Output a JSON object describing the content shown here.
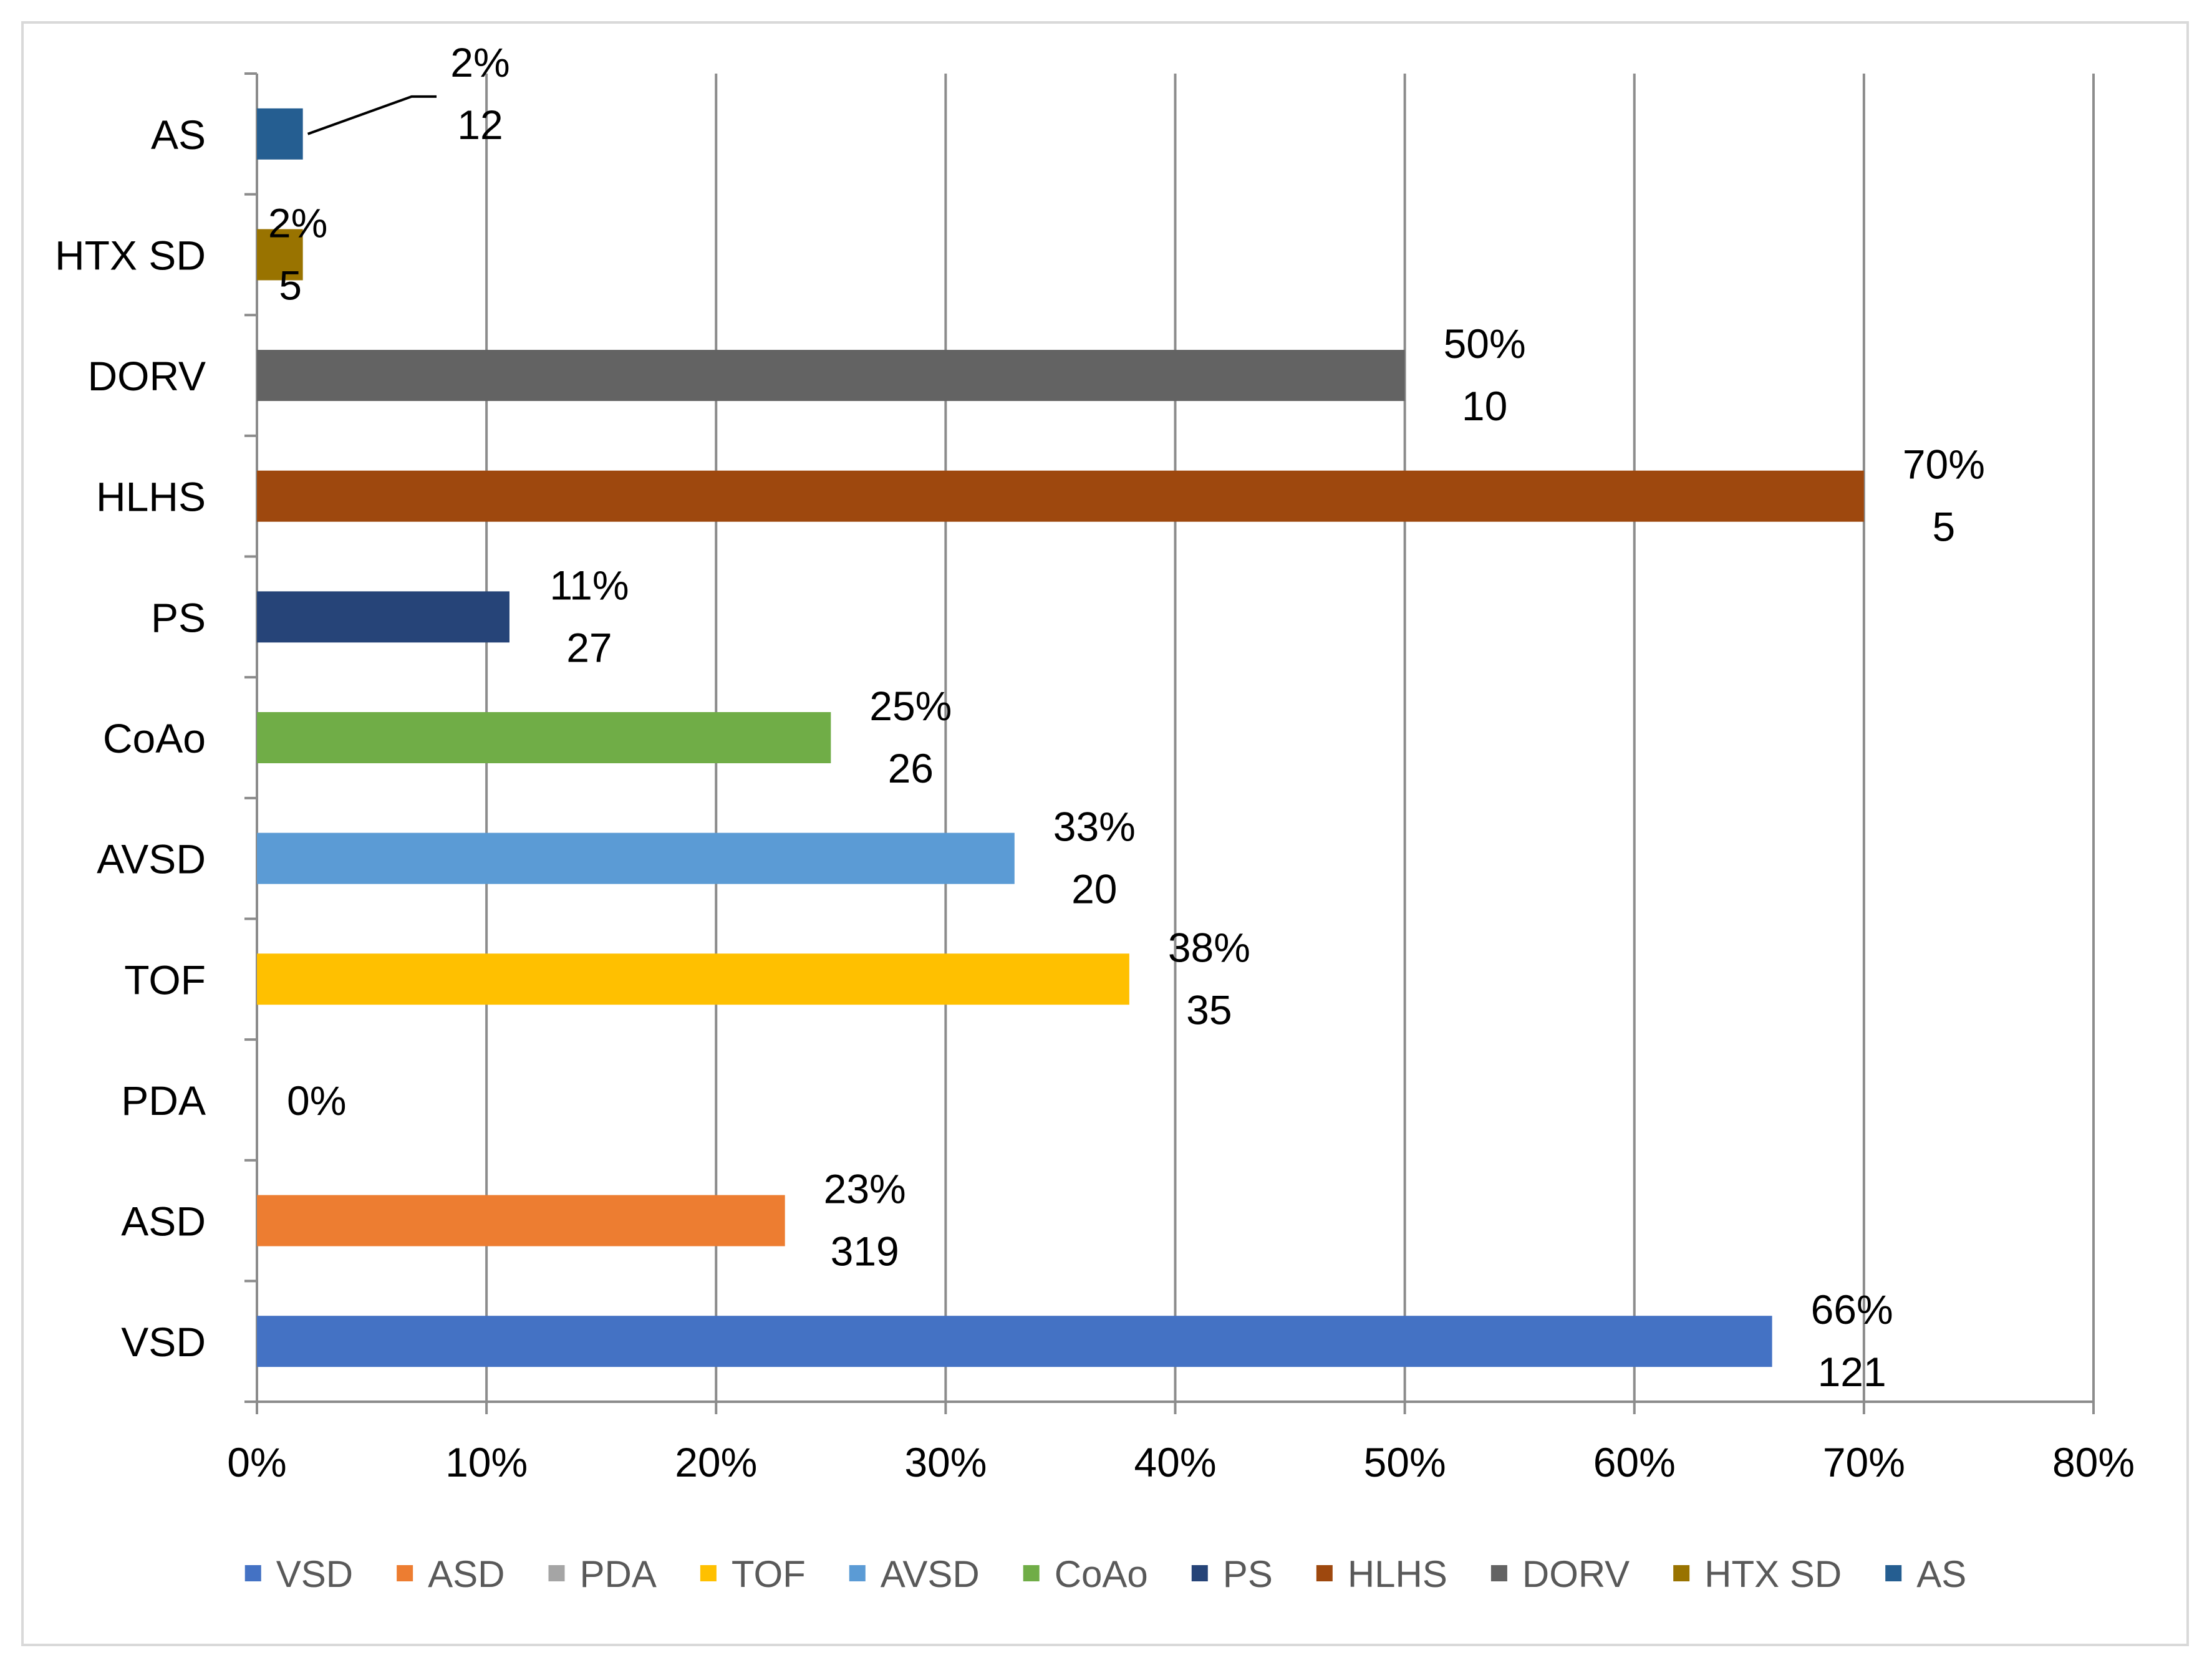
{
  "chart_data": {
    "type": "bar",
    "orientation": "horizontal",
    "categories": [
      "VSD",
      "ASD",
      "PDA",
      "TOF",
      "AVSD",
      "CoAo",
      "PS",
      "HLHS",
      "DORV",
      "HTX SD",
      "AS"
    ],
    "values": [
      66,
      23,
      0,
      38,
      33,
      25,
      11,
      70,
      50,
      2,
      2
    ],
    "value_labels": [
      "66%",
      "23%",
      "0%",
      "38%",
      "33%",
      "25%",
      "11%",
      "70%",
      "50%",
      "2%",
      "2%"
    ],
    "counts": [
      "121",
      "319",
      "",
      "35",
      "20",
      "26",
      "27",
      "5",
      "10",
      "5",
      "12"
    ],
    "colors": [
      "#4472C4",
      "#ED7D31",
      "#A5A5A5",
      "#FFC000",
      "#5B9BD5",
      "#70AD47",
      "#264478",
      "#9E480E",
      "#636363",
      "#997300",
      "#255E91"
    ],
    "xlim": [
      0,
      80
    ],
    "xticks": [
      "0%",
      "10%",
      "20%",
      "30%",
      "40%",
      "50%",
      "60%",
      "70%",
      "80%"
    ],
    "grid": true,
    "legend": [
      "VSD",
      "ASD",
      "PDA",
      "TOF",
      "AVSD",
      "CoAo",
      "PS",
      "HLHS",
      "DORV",
      "HTX SD",
      "AS"
    ],
    "legend_position": "bottom",
    "title": "",
    "xlabel": "",
    "ylabel": ""
  }
}
